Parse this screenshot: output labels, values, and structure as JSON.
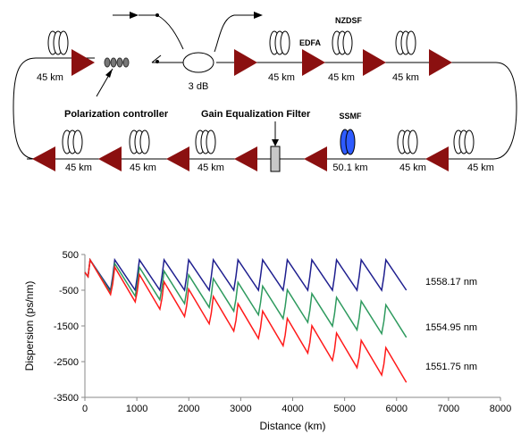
{
  "diagram": {
    "labels": {
      "span_top": [
        "45 km",
        "45 km",
        "45 km",
        "45 km"
      ],
      "coupler": "3 dB",
      "edfa": "EDFA",
      "nzdsf": "NZDSF",
      "polarization_controller": "Polarization controller",
      "gain_filter": "Gain Equalization Filter",
      "ssmf": "SSMF",
      "span_bottom": [
        "45 km",
        "45 km",
        "45 km",
        "50.1 km",
        "45 km",
        "45 km"
      ]
    },
    "colors": {
      "amplifier": "#8B1010",
      "ssmf_spool": "#2E5BFF",
      "filter": "#C8C8C8"
    }
  },
  "chart_data": {
    "type": "line",
    "title": "",
    "xlabel": "Distance (km)",
    "ylabel": "Dispersion (ps/nm)",
    "xlim": [
      0,
      8000
    ],
    "ylim": [
      -3500,
      500
    ],
    "x_ticks": [
      "0",
      "1000",
      "2000",
      "3000",
      "4000",
      "5000",
      "6000",
      "7000",
      "8000"
    ],
    "y_ticks": [
      "500",
      "-500",
      "-1500",
      "-2500",
      "-3500"
    ],
    "grid": false,
    "legend": "labels at right end of each series",
    "period_km": 474.5,
    "series": [
      {
        "name": "1558.17 nm",
        "color": "#1F1F8F",
        "start": 0,
        "drop_per_period": -500,
        "net_per_period": 0,
        "min_at_end": -500
      },
      {
        "name": "1554.95 nm",
        "color": "#2E9A5E",
        "start": 0,
        "drop_per_period": -560,
        "net_per_period": -105,
        "min_at_end": -1850
      },
      {
        "name": "1551.75 nm",
        "color": "#FF1A1A",
        "start": 0,
        "drop_per_period": -620,
        "net_per_period": -205,
        "min_at_end": -3050
      }
    ]
  }
}
